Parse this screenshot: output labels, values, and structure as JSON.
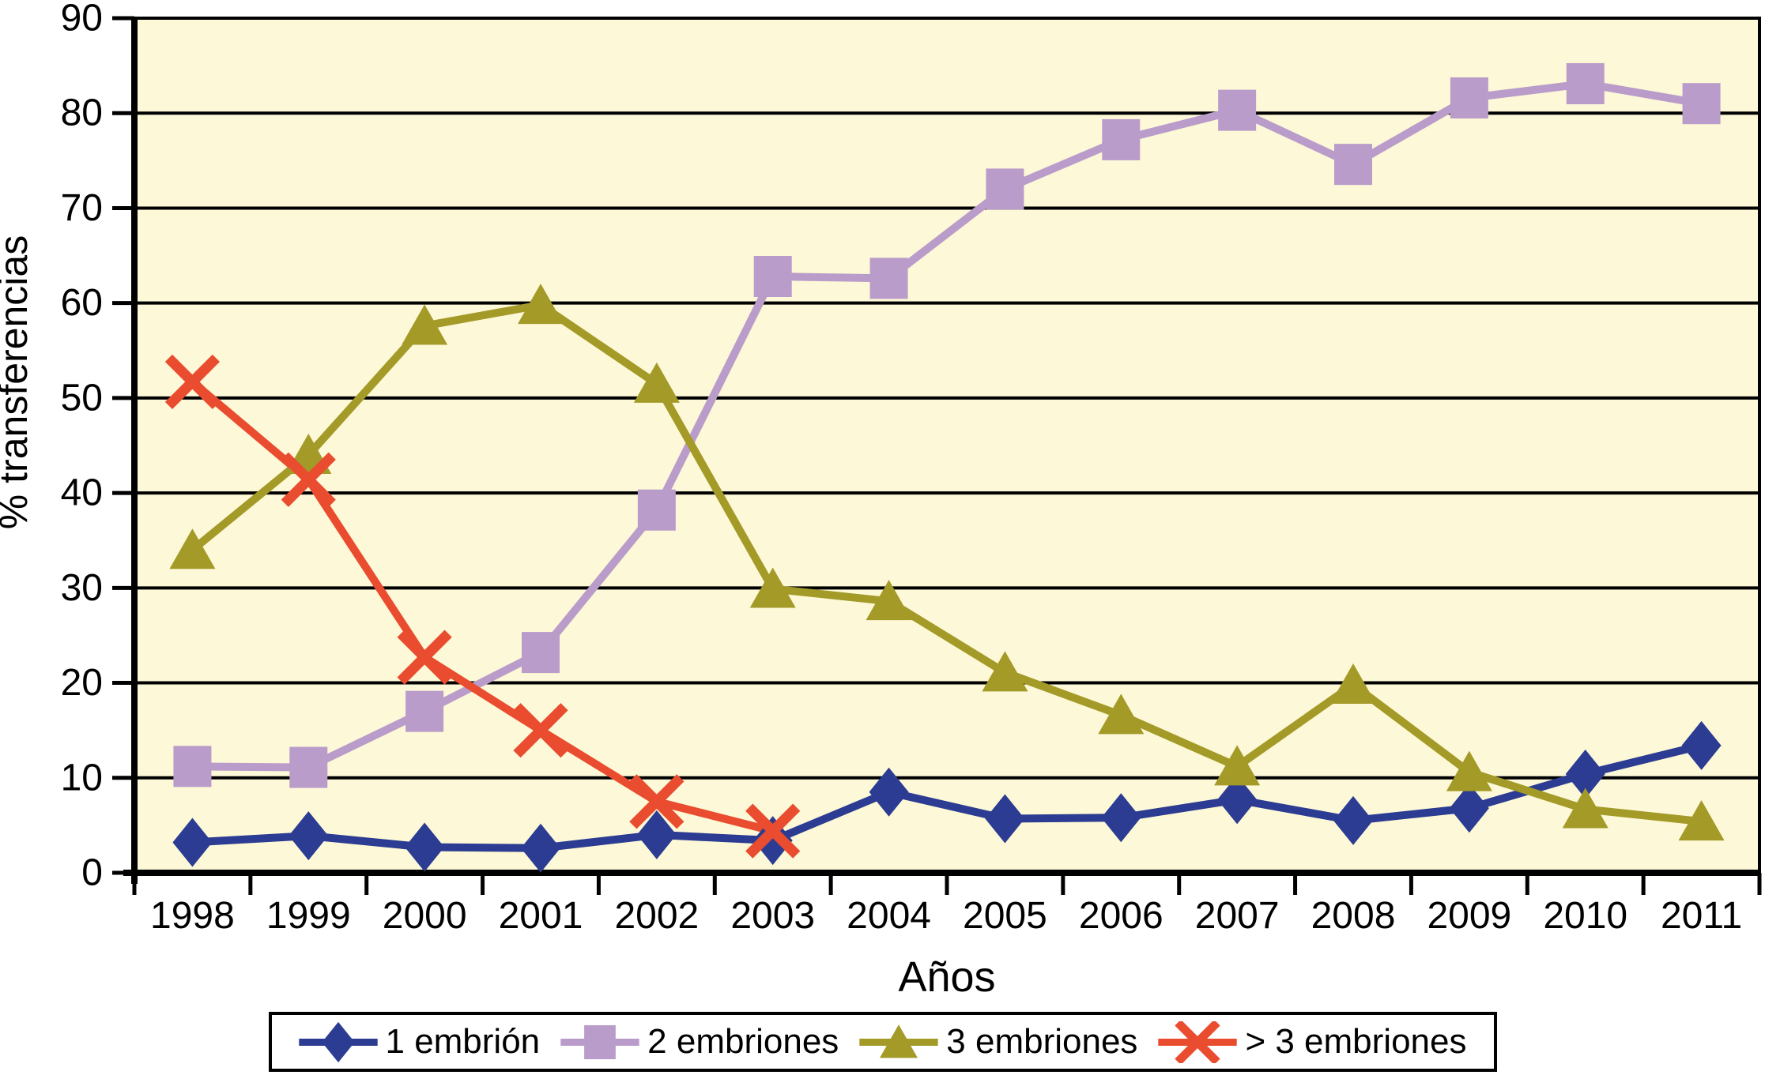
{
  "chart_data": {
    "type": "line",
    "title": "",
    "xlabel": "Años",
    "ylabel": "% transferencias",
    "ylim": [
      0,
      90
    ],
    "ytick_step": 10,
    "yticks": [
      0,
      10,
      20,
      30,
      40,
      50,
      60,
      70,
      80,
      90
    ],
    "grid": "horizontal",
    "legend_position": "bottom",
    "plot_background": "#FDF8D7",
    "grid_color": "#000000",
    "axis_color": "#000000",
    "categories": [
      "1998",
      "1999",
      "2000",
      "2001",
      "2002",
      "2003",
      "2004",
      "2005",
      "2006",
      "2007",
      "2008",
      "2009",
      "2010",
      "2011"
    ],
    "series": [
      {
        "name": "1 embrión",
        "marker": "diamond",
        "color": "#2B3C92",
        "values": [
          3.2,
          3.9,
          2.7,
          2.6,
          4.0,
          3.4,
          8.5,
          5.7,
          5.8,
          7.7,
          5.5,
          6.8,
          10.4,
          13.4
        ]
      },
      {
        "name": "2 embriones",
        "marker": "square",
        "color": "#B99CCA",
        "values": [
          11.2,
          11.1,
          17.0,
          23.2,
          38.2,
          62.8,
          62.6,
          72.0,
          77.2,
          80.3,
          74.6,
          81.6,
          83.1,
          81.0
        ]
      },
      {
        "name": "3 embriones",
        "marker": "triangle",
        "color": "#A39A28",
        "values": [
          34.0,
          44.0,
          57.6,
          59.8,
          51.5,
          29.9,
          28.6,
          21.1,
          16.6,
          11.2,
          19.8,
          10.6,
          6.7,
          5.4
        ]
      },
      {
        "name": "> 3 embriones",
        "marker": "x",
        "color": "#E94C2E",
        "values": [
          51.7,
          41.4,
          22.7,
          15.0,
          7.5,
          4.4,
          null,
          null,
          null,
          null,
          null,
          null,
          null,
          null
        ]
      }
    ]
  }
}
